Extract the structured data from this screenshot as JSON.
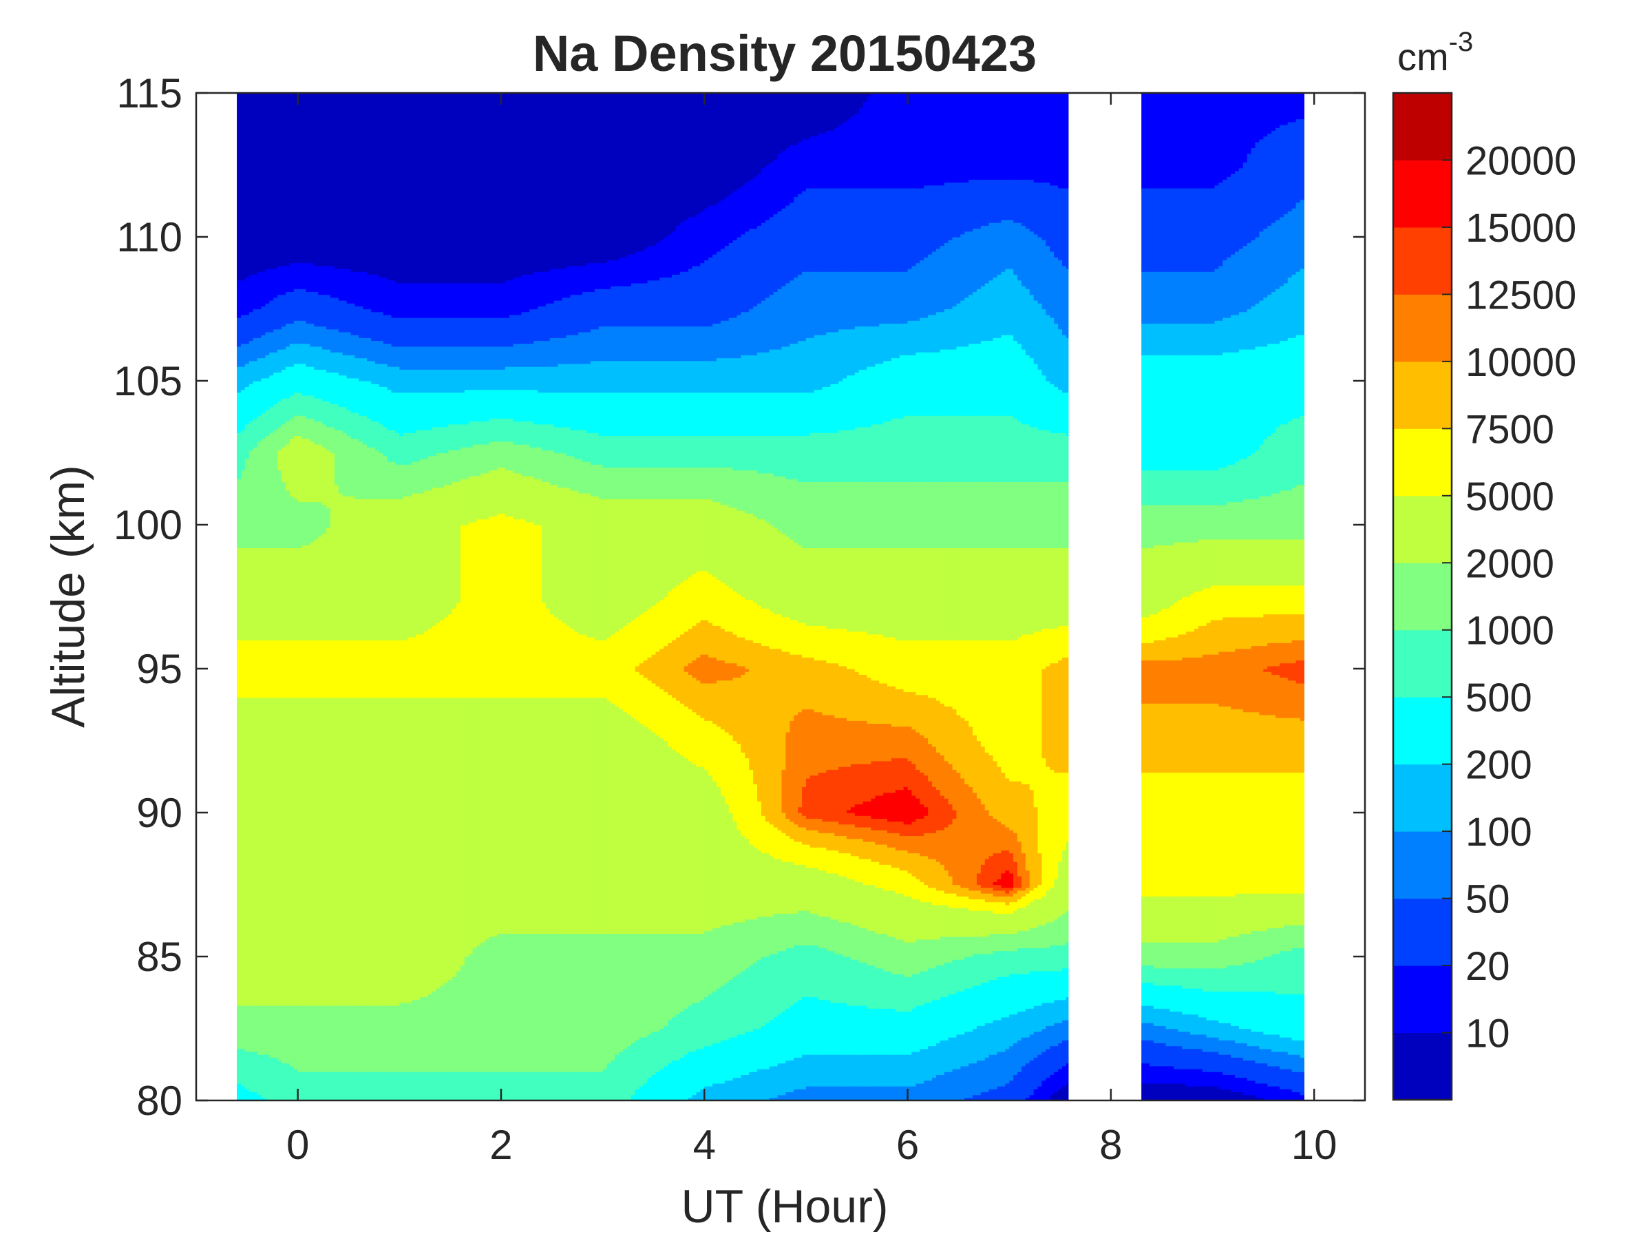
{
  "chart_data": {
    "type": "heatmap",
    "subtype": "filled-contour",
    "title": "Na Density 20150423",
    "xlabel": "UT (Hour)",
    "ylabel": "Altitude (km)",
    "xlim": [
      -1,
      10.5
    ],
    "ylim": [
      80,
      115
    ],
    "xticks": [
      0,
      2,
      4,
      6,
      8,
      10
    ],
    "yticks": [
      80,
      85,
      90,
      95,
      100,
      105,
      110,
      115
    ],
    "colorbar": {
      "unit_base": "cm",
      "unit_exp": "-3",
      "levels": [
        10,
        20,
        50,
        100,
        200,
        500,
        1000,
        2000,
        5000,
        7500,
        10000,
        12500,
        15000,
        20000
      ],
      "tick_labels": [
        "10",
        "20",
        "50",
        "100",
        "200",
        "500",
        "1000",
        "2000",
        "5000",
        "7500",
        "10000",
        "12500",
        "15000",
        "20000"
      ],
      "colors": [
        "#0000bf",
        "#0000ff",
        "#0040ff",
        "#0080ff",
        "#00bfff",
        "#00ffff",
        "#40ffbf",
        "#80ff80",
        "#bfff40",
        "#ffff00",
        "#ffbf00",
        "#ff8000",
        "#ff4000",
        "#ff0000",
        "#bf0000"
      ]
    },
    "altitudes": [
      80,
      82.5,
      85,
      87.5,
      90,
      92.5,
      95,
      97.5,
      100,
      102.5,
      105,
      107.5,
      110,
      112.5,
      115
    ],
    "segments": [
      {
        "times": [
          -0.6,
          0,
          1,
          2,
          3,
          4,
          5,
          6,
          7,
          7.58
        ],
        "density": [
          [
            350,
            1500,
            3500,
            3500,
            3500,
            3500,
            6250,
            3500,
            1500,
            750,
            150,
            15,
            5,
            5,
            5
          ],
          [
            750,
            1500,
            3500,
            3500,
            3500,
            3500,
            6250,
            3500,
            1500,
            3500,
            350,
            35,
            5,
            5,
            5
          ],
          [
            750,
            1500,
            3500,
            3500,
            3500,
            3500,
            6250,
            3500,
            3500,
            750,
            150,
            15,
            5,
            5,
            5
          ],
          [
            750,
            1500,
            1500,
            3500,
            3500,
            3500,
            6250,
            6250,
            6250,
            1500,
            150,
            15,
            5,
            5,
            5
          ],
          [
            750,
            1500,
            1500,
            3500,
            3500,
            3500,
            6250,
            3500,
            3500,
            750,
            150,
            35,
            5,
            5,
            5
          ],
          [
            150,
            750,
            1500,
            3500,
            3500,
            6250,
            11250,
            6250,
            3500,
            750,
            150,
            35,
            15,
            5,
            5
          ],
          [
            75,
            350,
            750,
            3500,
            13750,
            11250,
            8750,
            3500,
            1500,
            750,
            150,
            75,
            35,
            15,
            5
          ],
          [
            75,
            350,
            1500,
            6250,
            17500,
            11250,
            6250,
            3500,
            1500,
            750,
            350,
            75,
            35,
            15,
            15
          ],
          [
            35,
            150,
            750,
            17500,
            8750,
            6250,
            6250,
            3500,
            1500,
            750,
            350,
            150,
            75,
            15,
            15
          ],
          [
            5,
            75,
            750,
            3500,
            6250,
            8750,
            8750,
            3500,
            1500,
            750,
            150,
            75,
            35,
            15,
            15
          ]
        ]
      },
      {
        "times": [
          8.3,
          9,
          9.9
        ],
        "density": [
          [
            5,
            75,
            1500,
            6250,
            6250,
            8750,
            11250,
            3500,
            1500,
            350,
            350,
            75,
            35,
            15,
            15
          ],
          [
            5,
            150,
            1500,
            6250,
            6250,
            8750,
            11250,
            6250,
            1500,
            350,
            350,
            75,
            35,
            15,
            15
          ],
          [
            15,
            350,
            750,
            6250,
            6250,
            8750,
            13750,
            6250,
            1500,
            750,
            350,
            150,
            75,
            35,
            15
          ]
        ]
      }
    ]
  }
}
